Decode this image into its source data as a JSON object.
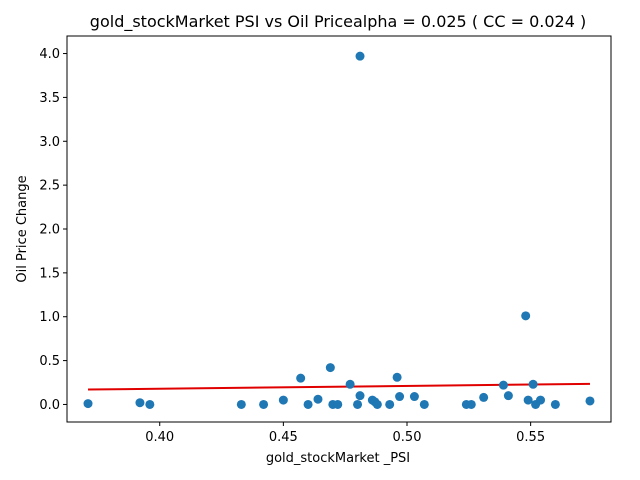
{
  "chart_data": {
    "type": "scatter",
    "title": "gold_stockMarket  PSI vs Oil Pricealpha = 0.025 ( CC = 0.024 )",
    "xlabel": "gold_stockMarket _PSI",
    "ylabel": "Oil Price Change",
    "xlim": [
      0.3625,
      0.5825
    ],
    "ylim": [
      -0.2,
      4.2
    ],
    "xticks": [
      0.4,
      0.45,
      0.5,
      0.55
    ],
    "xtick_labels": [
      "0.40",
      "0.45",
      "0.50",
      "0.55"
    ],
    "yticks": [
      0.0,
      0.5,
      1.0,
      1.5,
      2.0,
      2.5,
      3.0,
      3.5,
      4.0
    ],
    "ytick_labels": [
      "0.0",
      "0.5",
      "1.0",
      "1.5",
      "2.0",
      "2.5",
      "3.0",
      "3.5",
      "4.0"
    ],
    "grid": false,
    "legend": "none",
    "series": [
      {
        "marker_color": "#1f77b4",
        "points": [
          {
            "x": 0.371,
            "y": 0.01
          },
          {
            "x": 0.392,
            "y": 0.02
          },
          {
            "x": 0.396,
            "y": 0.0
          },
          {
            "x": 0.433,
            "y": 0.0
          },
          {
            "x": 0.442,
            "y": 0.0
          },
          {
            "x": 0.45,
            "y": 0.05
          },
          {
            "x": 0.457,
            "y": 0.3
          },
          {
            "x": 0.46,
            "y": 0.0
          },
          {
            "x": 0.464,
            "y": 0.06
          },
          {
            "x": 0.469,
            "y": 0.42
          },
          {
            "x": 0.47,
            "y": 0.0
          },
          {
            "x": 0.472,
            "y": 0.0
          },
          {
            "x": 0.477,
            "y": 0.23
          },
          {
            "x": 0.48,
            "y": 0.0
          },
          {
            "x": 0.481,
            "y": 0.1
          },
          {
            "x": 0.481,
            "y": 3.97
          },
          {
            "x": 0.486,
            "y": 0.05
          },
          {
            "x": 0.487,
            "y": 0.03
          },
          {
            "x": 0.488,
            "y": 0.0
          },
          {
            "x": 0.493,
            "y": 0.0
          },
          {
            "x": 0.496,
            "y": 0.31
          },
          {
            "x": 0.497,
            "y": 0.09
          },
          {
            "x": 0.503,
            "y": 0.09
          },
          {
            "x": 0.507,
            "y": 0.0
          },
          {
            "x": 0.524,
            "y": 0.0
          },
          {
            "x": 0.526,
            "y": 0.0
          },
          {
            "x": 0.531,
            "y": 0.08
          },
          {
            "x": 0.539,
            "y": 0.22
          },
          {
            "x": 0.541,
            "y": 0.1
          },
          {
            "x": 0.548,
            "y": 1.01
          },
          {
            "x": 0.549,
            "y": 0.05
          },
          {
            "x": 0.551,
            "y": 0.23
          },
          {
            "x": 0.552,
            "y": 0.0
          },
          {
            "x": 0.554,
            "y": 0.05
          },
          {
            "x": 0.56,
            "y": 0.0
          },
          {
            "x": 0.574,
            "y": 0.04
          }
        ]
      },
      {
        "line_color": "#e00000",
        "line": [
          {
            "x": 0.371,
            "y": 0.17
          },
          {
            "x": 0.574,
            "y": 0.235
          }
        ]
      }
    ]
  }
}
